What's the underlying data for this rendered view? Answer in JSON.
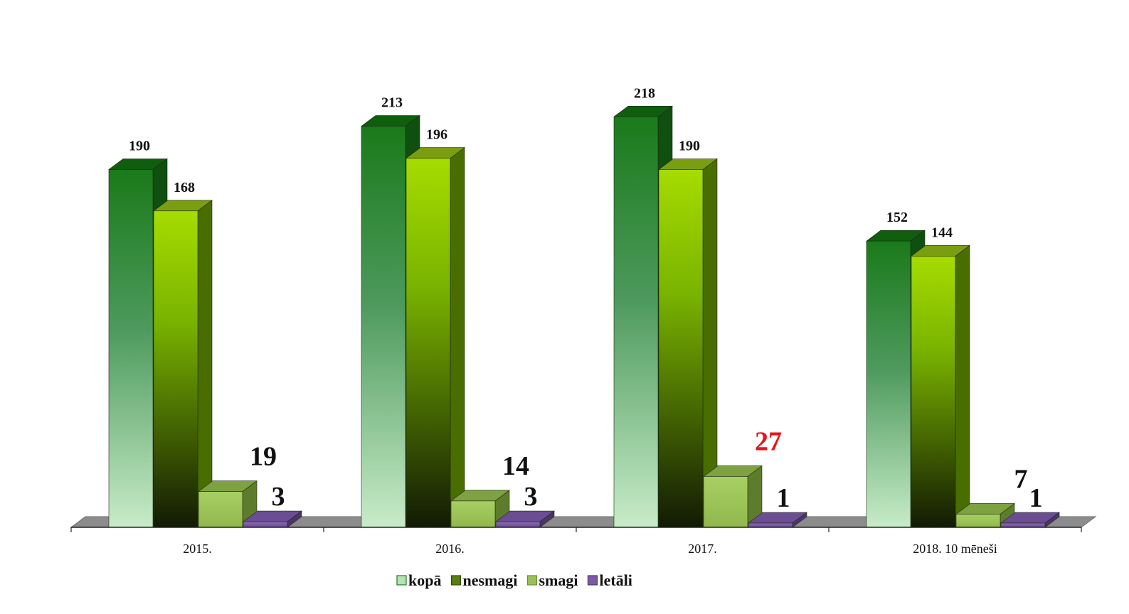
{
  "chart_data": {
    "type": "bar",
    "categories": [
      "2015.",
      "2016.",
      "2017.",
      "2018. 10 mēneši"
    ],
    "series": [
      {
        "name": "kopā",
        "values": [
          190,
          213,
          218,
          152
        ],
        "color": "#1e7f1e"
      },
      {
        "name": "nesmagi",
        "values": [
          168,
          196,
          190,
          144
        ],
        "color": "#8fce00"
      },
      {
        "name": "smagi",
        "values": [
          19,
          14,
          27,
          7
        ],
        "color": "#9bbf59"
      },
      {
        "name": "letāli",
        "values": [
          3,
          3,
          1,
          1
        ],
        "color": "#7b5aa6"
      }
    ],
    "data_labels": [
      [
        "190",
        "213",
        "218",
        "152"
      ],
      [
        "168",
        "196",
        "190",
        "144"
      ],
      [
        "19",
        "14",
        "27",
        "7"
      ],
      [
        "3",
        "3",
        "1",
        "1"
      ]
    ],
    "highlight_label": {
      "series": 2,
      "category": 2,
      "color": "#e8141b"
    },
    "ylim": [
      0,
      218
    ],
    "legend_position": "bottom",
    "grid": false,
    "title": "",
    "xlabel": "",
    "ylabel": ""
  }
}
